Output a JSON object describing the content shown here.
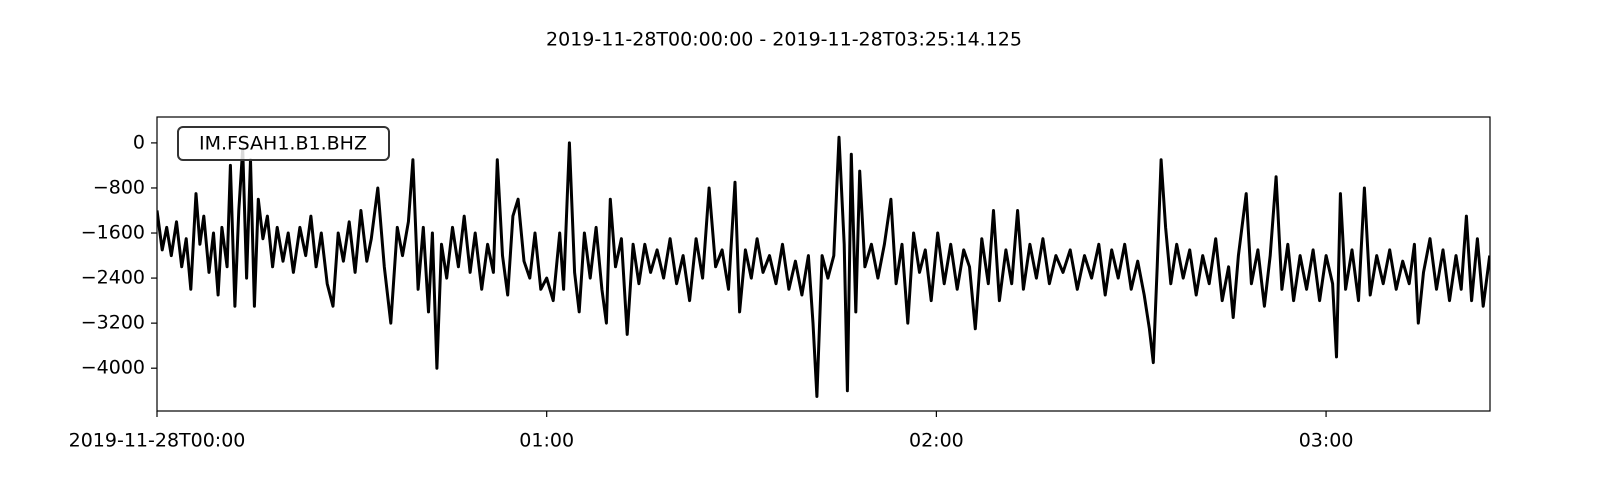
{
  "chart_data": {
    "type": "line",
    "title": "2019-11-28T00:00:00  -  2019-11-28T03:25:14.125",
    "x": [
      0,
      0.8,
      1.5,
      2.2,
      3,
      3.8,
      4.5,
      5.2,
      6,
      6.6,
      7.2,
      8,
      8.7,
      9.4,
      10,
      10.8,
      11.3,
      12,
      12.6,
      13.2,
      13.8,
      14.4,
      15,
      15.6,
      16.3,
      17,
      17.8,
      18.5,
      19.4,
      20.2,
      21,
      22,
      22.9,
      23.7,
      24.5,
      25.3,
      26.2,
      27.1,
      27.9,
      28.7,
      29.6,
      30.5,
      31.4,
      32.3,
      33,
      34,
      35,
      36,
      37,
      37.8,
      38.7,
      39.4,
      40.2,
      41,
      41.8,
      42.4,
      43.1,
      43.8,
      44.6,
      45.5,
      46.4,
      47.3,
      48.2,
      49,
      50,
      50.9,
      51.8,
      52.4,
      53.2,
      54,
      54.8,
      55.6,
      56.5,
      57.4,
      58.2,
      59.1,
      60,
      61,
      62,
      62.6,
      63.5,
      64.3,
      65,
      65.8,
      66.7,
      67.6,
      68.5,
      69.2,
      69.8,
      70.6,
      71.5,
      72.4,
      73.3,
      74.2,
      75.1,
      76,
      77,
      78,
      79,
      80,
      81,
      82,
      83,
      84,
      85,
      86,
      87,
      88,
      89,
      89.7,
      90.6,
      91.5,
      92.4,
      93.3,
      94.3,
      95.3,
      96.3,
      97.3,
      98.3,
      99.3,
      100.3,
      101,
      101.6,
      102.4,
      103.3,
      104.2,
      105,
      105.8,
      106.3,
      106.9,
      107.6,
      108.2,
      109,
      110,
      111,
      112,
      113,
      113.8,
      114.7,
      115.6,
      116.5,
      117.4,
      118.3,
      119.2,
      120.2,
      121.2,
      122.2,
      123.2,
      124.2,
      125.1,
      126,
      127,
      128,
      128.8,
      129.7,
      130.7,
      131.6,
      132.5,
      133.4,
      134.4,
      135.4,
      136.4,
      137.4,
      138.4,
      139.5,
      140.6,
      141.7,
      142.8,
      143.9,
      145,
      146,
      147,
      148,
      149,
      150,
      151,
      152,
      152.8,
      153.4,
      154,
      154.6,
      155.3,
      156.1,
      157,
      158,
      159,
      160,
      161,
      162,
      163,
      164,
      165,
      165.7,
      166.5,
      167.7,
      168.5,
      169.5,
      170.5,
      171.4,
      172.3,
      173.2,
      174.1,
      175,
      176,
      177,
      178,
      179,
      180,
      181,
      181.6,
      182.2,
      183,
      184,
      185,
      185.9,
      186.8,
      187.8,
      188.8,
      189.8,
      190.8,
      191.8,
      192.8,
      193.6,
      194.2,
      195,
      196,
      197,
      198,
      199,
      200,
      200.8,
      201.6,
      202.4,
      203.3,
      204.2,
      205.2
    ],
    "series": [
      {
        "name": "IM.FSAH1.B1.BHZ",
        "color": "#000000",
        "values": [
          -1200,
          -1900,
          -1500,
          -2000,
          -1400,
          -2200,
          -1700,
          -2600,
          -900,
          -1800,
          -1300,
          -2300,
          -1600,
          -2700,
          -1500,
          -2200,
          -400,
          -2900,
          -1200,
          -100,
          -2400,
          -300,
          -2900,
          -1000,
          -1700,
          -1300,
          -2200,
          -1500,
          -2100,
          -1600,
          -2300,
          -1500,
          -2000,
          -1300,
          -2200,
          -1600,
          -2500,
          -2900,
          -1600,
          -2100,
          -1400,
          -2300,
          -1200,
          -2100,
          -1700,
          -800,
          -2200,
          -3200,
          -1500,
          -2000,
          -1400,
          -300,
          -2600,
          -1500,
          -3000,
          -1600,
          -4000,
          -1800,
          -2400,
          -1500,
          -2200,
          -1300,
          -2300,
          -1600,
          -2600,
          -1800,
          -2300,
          -300,
          -2000,
          -2700,
          -1300,
          -1000,
          -2100,
          -2400,
          -1600,
          -2600,
          -2400,
          -2800,
          -1600,
          -2600,
          0,
          -2300,
          -3000,
          -1600,
          -2400,
          -1500,
          -2600,
          -3200,
          -1000,
          -2200,
          -1700,
          -3400,
          -1800,
          -2500,
          -1800,
          -2300,
          -1900,
          -2400,
          -1700,
          -2500,
          -2000,
          -2800,
          -1700,
          -2400,
          -800,
          -2200,
          -1900,
          -2600,
          -700,
          -3000,
          -1900,
          -2400,
          -1700,
          -2300,
          -2000,
          -2500,
          -1800,
          -2600,
          -2100,
          -2700,
          -2000,
          -3200,
          -4500,
          -2000,
          -2400,
          -2000,
          100,
          -1800,
          -4400,
          -200,
          -3000,
          -500,
          -2200,
          -1800,
          -2400,
          -1800,
          -1000,
          -2500,
          -1800,
          -3200,
          -1600,
          -2300,
          -1900,
          -2800,
          -1600,
          -2500,
          -1800,
          -2600,
          -1900,
          -2200,
          -3300,
          -1700,
          -2500,
          -1200,
          -2800,
          -1900,
          -2500,
          -1200,
          -2600,
          -1800,
          -2400,
          -1700,
          -2500,
          -2000,
          -2300,
          -1900,
          -2600,
          -2000,
          -2400,
          -1800,
          -2700,
          -1900,
          -2400,
          -1800,
          -2600,
          -2100,
          -2700,
          -3300,
          -3900,
          -2200,
          -300,
          -1500,
          -2500,
          -1800,
          -2400,
          -1900,
          -2700,
          -2000,
          -2500,
          -1700,
          -2800,
          -2200,
          -3100,
          -2000,
          -900,
          -2500,
          -1900,
          -2900,
          -2000,
          -600,
          -2600,
          -1800,
          -2800,
          -2000,
          -2600,
          -1900,
          -2800,
          -2000,
          -2500,
          -3800,
          -900,
          -2600,
          -1900,
          -2800,
          -800,
          -2700,
          -2000,
          -2500,
          -1900,
          -2600,
          -2100,
          -2500,
          -1800,
          -3200,
          -2300,
          -1700,
          -2600,
          -1900,
          -2800,
          -2000,
          -2600,
          -1300,
          -2800,
          -1700,
          -2900,
          -2000
        ]
      }
    ],
    "xlim": [
      0,
      205.24
    ],
    "xticks": [
      {
        "value": 0,
        "label": "2019-11-28T00:00"
      },
      {
        "value": 60,
        "label": "01:00"
      },
      {
        "value": 120,
        "label": "02:00"
      },
      {
        "value": 180,
        "label": "03:00"
      }
    ],
    "ylim": [
      -4760,
      460
    ],
    "yticks": [
      0,
      {
        "value": -800,
        "label": "−800"
      },
      {
        "value": -1600,
        "label": "−1600"
      },
      {
        "value": -2400,
        "label": "−2400"
      },
      {
        "value": -3200,
        "label": "−3200"
      },
      {
        "value": -4000,
        "label": "−4000"
      }
    ]
  }
}
